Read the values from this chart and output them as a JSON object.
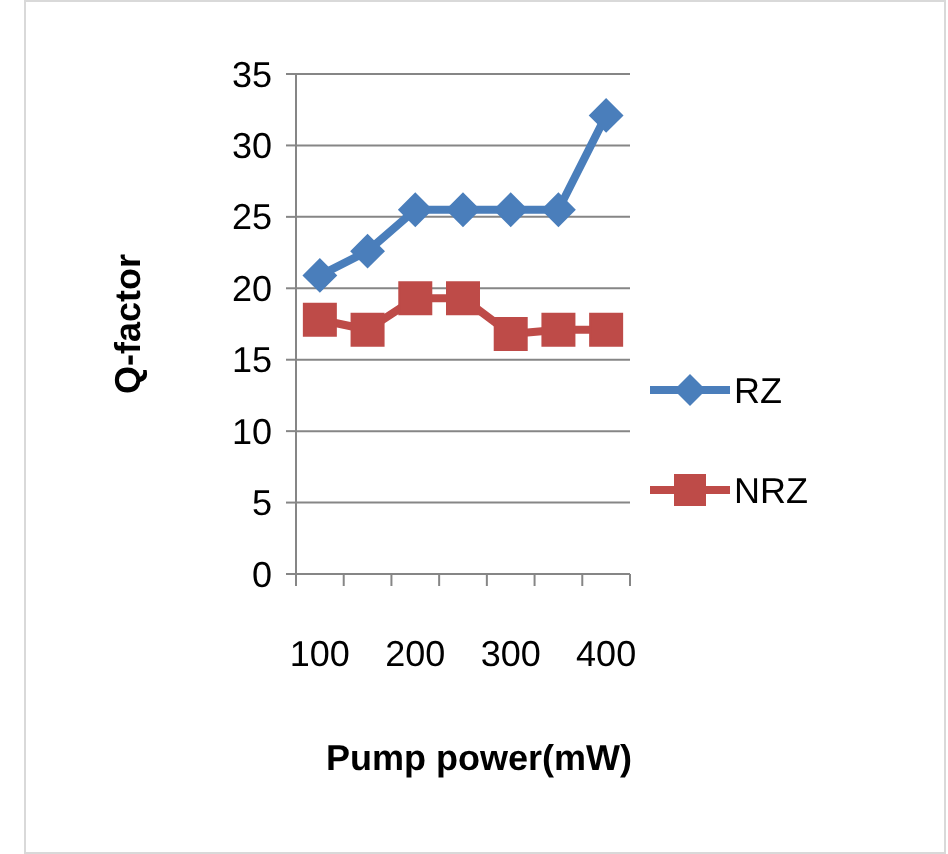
{
  "chart_data": {
    "type": "line",
    "xlabel": "Pump power(mW)",
    "ylabel": "Q-factor",
    "categories": [
      "100",
      null,
      "200",
      null,
      "300",
      null,
      "400"
    ],
    "series": [
      {
        "name": "RZ",
        "color": "#4a7ebb",
        "marker": "diamond",
        "values": [
          20.9,
          22.6,
          25.5,
          25.5,
          25.5,
          25.5,
          32.1
        ]
      },
      {
        "name": "NRZ",
        "color": "#be4b48",
        "marker": "square",
        "values": [
          17.8,
          17.1,
          19.3,
          19.3,
          16.8,
          17.1,
          17.1
        ]
      }
    ],
    "ylim": [
      0,
      35
    ],
    "yticks": [
      0,
      5,
      10,
      15,
      20,
      25,
      30,
      35
    ],
    "grid": "y",
    "legend": "right"
  }
}
